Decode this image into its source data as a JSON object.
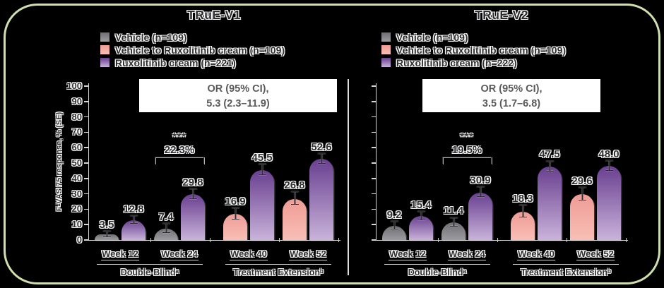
{
  "chart_data": {
    "type": "bar",
    "y_axis": {
      "label": "F-VASI75 response, % (SE)",
      "min": 0,
      "max": 100,
      "ticks": [
        {
          "value": 0,
          "label": "0"
        },
        {
          "value": 10,
          "label": "10"
        },
        {
          "value": 20,
          "label": "20"
        },
        {
          "value": 30,
          "label": "30"
        },
        {
          "value": 40,
          "label": "40"
        },
        {
          "value": 50,
          "label": "50"
        },
        {
          "value": 60,
          "label": "60"
        },
        {
          "value": 70,
          "label": "70"
        },
        {
          "value": 80,
          "label": "80"
        },
        {
          "value": 90,
          "label": "90"
        },
        {
          "value": 100,
          "label": "100"
        }
      ]
    },
    "colors": {
      "background": "#000000",
      "frame_border": "#cfe0ae",
      "axis_line": "#d6d6d6",
      "or_box_text": "#595a5c",
      "series": {
        "vehicle": {
          "top": "#6e6e73",
          "bottom": "#9b9ba0"
        },
        "vehicle_to_ruxolitinib": {
          "top": "#ef9b95",
          "bottom": "#f8bfb6"
        },
        "ruxolitinib": {
          "top": "#693f90",
          "bottom": "#c9b3da"
        }
      }
    },
    "panels": [
      {
        "title": "TRuE-V1",
        "legend": [
          {
            "series": "vehicle",
            "label": "Vehicle (n=109)"
          },
          {
            "series": "vehicle_to_ruxolitinib",
            "label": "Vehicle to Ruxolitinib cream (n=109)"
          },
          {
            "series": "ruxolitinib",
            "label": "Ruxolitinib cream (n=221)"
          }
        ],
        "or_box": {
          "line1": "OR (95% CI),",
          "line2": "5.3 (2.3–11.9)"
        },
        "significance": {
          "stars": "***",
          "difference_label": "22.3%",
          "at_week": "Week 24"
        },
        "groups": [
          {
            "week": "Week 12",
            "bars": [
              {
                "series": "vehicle",
                "value": 3.5,
                "label": "3.5",
                "se": 1.6
              },
              {
                "series": "ruxolitinib",
                "value": 12.8,
                "label": "12.8",
                "se": 2.3
              }
            ]
          },
          {
            "week": "Week 24",
            "bars": [
              {
                "series": "vehicle",
                "value": 7.4,
                "label": "7.4",
                "se": 2.6
              },
              {
                "series": "ruxolitinib",
                "value": 29.8,
                "label": "29.8",
                "se": 3.0
              }
            ]
          },
          {
            "week": "Week 40",
            "bars": [
              {
                "series": "vehicle_to_ruxolitinib",
                "value": 16.9,
                "label": "16.9",
                "se": 3.5
              },
              {
                "series": "ruxolitinib",
                "value": 45.5,
                "label": "45.5",
                "se": 3.3
              }
            ]
          },
          {
            "week": "Week 52",
            "bars": [
              {
                "series": "vehicle_to_ruxolitinib",
                "value": 26.8,
                "label": "26.8",
                "se": 4.0
              },
              {
                "series": "ruxolitinib",
                "value": 52.6,
                "label": "52.6",
                "se": 3.1
              }
            ]
          }
        ],
        "phases": [
          {
            "label": "Double-Blindᵃ"
          },
          {
            "label": "Treatment Extensionᵇ"
          }
        ]
      },
      {
        "title": "TRuE-V2",
        "legend": [
          {
            "series": "vehicle",
            "label": "Vehicle (n=109)"
          },
          {
            "series": "vehicle_to_ruxolitinib",
            "label": "Vehicle to Ruxolitinib cream (n=109)"
          },
          {
            "series": "ruxolitinib",
            "label": "Ruxolitinib cream (n=222)"
          }
        ],
        "or_box": {
          "line1": "OR (95% CI),",
          "line2": "3.5 (1.7–6.8)"
        },
        "significance": {
          "stars": "***",
          "difference_label": "19.5%",
          "at_week": "Week 24"
        },
        "groups": [
          {
            "week": "Week 12",
            "bars": [
              {
                "series": "vehicle",
                "value": 9.2,
                "label": "9.2",
                "se": 2.2
              },
              {
                "series": "ruxolitinib",
                "value": 15.4,
                "label": "15.4",
                "se": 2.4
              }
            ]
          },
          {
            "week": "Week 24",
            "bars": [
              {
                "series": "vehicle",
                "value": 11.4,
                "label": "11.4",
                "se": 2.6
              },
              {
                "series": "ruxolitinib",
                "value": 30.9,
                "label": "30.9",
                "se": 2.9
              }
            ]
          },
          {
            "week": "Week 40",
            "bars": [
              {
                "series": "vehicle_to_ruxolitinib",
                "value": 18.3,
                "label": "18.3",
                "se": 3.7
              },
              {
                "series": "ruxolitinib",
                "value": 47.5,
                "label": "47.5",
                "se": 3.2
              }
            ]
          },
          {
            "week": "Week 52",
            "bars": [
              {
                "series": "vehicle_to_ruxolitinib",
                "value": 29.6,
                "label": "29.6",
                "se": 3.9
              },
              {
                "series": "ruxolitinib",
                "value": 48.0,
                "label": "48.0",
                "se": 3.0
              }
            ]
          }
        ],
        "phases": [
          {
            "label": "Double-Blindᵃ"
          },
          {
            "label": "Treatment Extensionᵇ"
          }
        ]
      }
    ]
  }
}
